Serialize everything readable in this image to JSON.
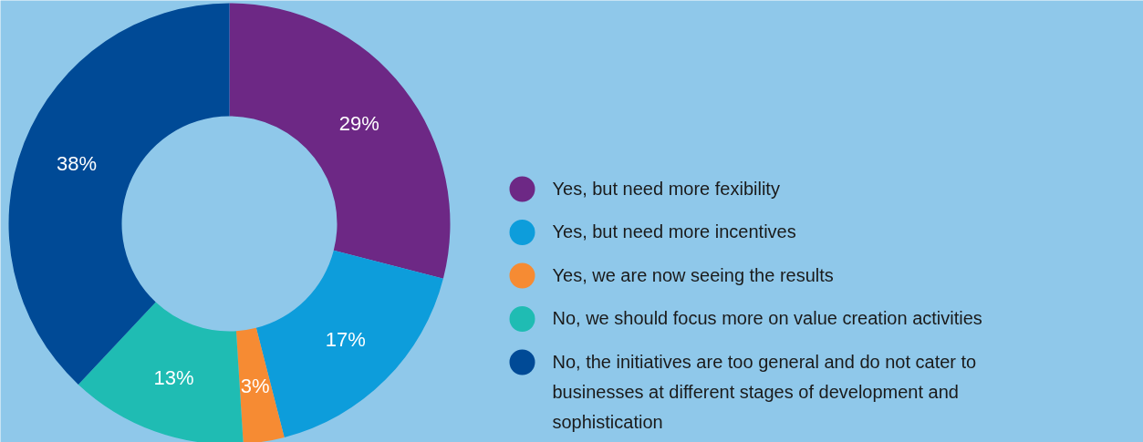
{
  "chart_data": {
    "type": "donut",
    "categories": [
      "Yes, but need more fexibility",
      "Yes, but need more incentives",
      "Yes, we are now seeing the results",
      "No, we should focus more on value creation activities",
      "No, the initiatives are too general and do not cater to businesses at different stages of development and sophistication"
    ],
    "values": [
      29,
      17,
      3,
      13,
      38
    ],
    "colors": [
      "#6d2885",
      "#0d9ddb",
      "#f68b33",
      "#1fbcb3",
      "#004a96"
    ],
    "value_labels": [
      "29%",
      "17%",
      "3%",
      "13%",
      "38%"
    ],
    "legend": "right"
  }
}
